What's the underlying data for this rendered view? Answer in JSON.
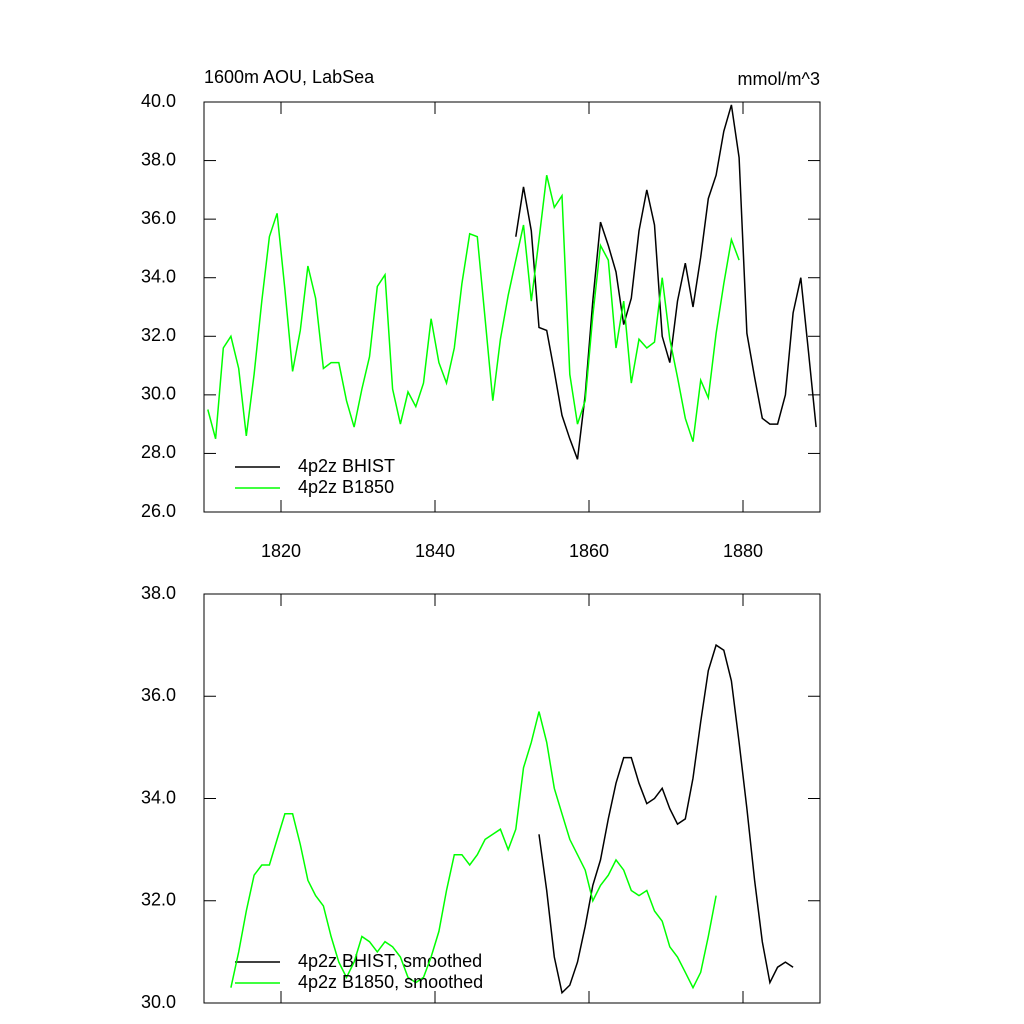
{
  "chart_data": [
    {
      "type": "line",
      "title": "1600m AOU, LabSea",
      "subtitle": "mmol/m^3",
      "x": [
        1810.5,
        1811.5,
        1812.5,
        1813.5,
        1814.5,
        1815.5,
        1816.5,
        1817.5,
        1818.5,
        1819.5,
        1820.5,
        1821.5,
        1822.5,
        1823.5,
        1824.5,
        1825.5,
        1826.5,
        1827.5,
        1828.5,
        1829.5,
        1830.5,
        1831.5,
        1832.5,
        1833.5,
        1834.5,
        1835.5,
        1836.5,
        1837.5,
        1838.5,
        1839.5,
        1840.5,
        1841.5,
        1842.5,
        1843.5,
        1844.5,
        1845.5,
        1846.5,
        1847.5,
        1848.5,
        1849.5,
        1850.5,
        1851.5,
        1852.5,
        1853.5,
        1854.5,
        1855.5,
        1856.5,
        1857.5,
        1858.5,
        1859.5,
        1860.5,
        1861.5,
        1862.5,
        1863.5,
        1864.5,
        1865.5,
        1866.5,
        1867.5,
        1868.5,
        1869.5,
        1870.5,
        1871.5,
        1872.5,
        1873.5,
        1874.5,
        1875.5,
        1876.5,
        1877.5,
        1878.5,
        1879.5,
        1880.5,
        1881.5,
        1882.5,
        1883.5,
        1884.5,
        1885.5,
        1886.5,
        1887.5,
        1888.5,
        1889.5
      ],
      "series": [
        {
          "name": "4p2z BHIST",
          "color": "#000000",
          "values": [
            null,
            null,
            null,
            null,
            null,
            null,
            null,
            null,
            null,
            null,
            null,
            null,
            null,
            null,
            null,
            null,
            null,
            null,
            null,
            null,
            null,
            null,
            null,
            null,
            null,
            null,
            null,
            null,
            null,
            null,
            null,
            null,
            null,
            null,
            null,
            null,
            null,
            null,
            null,
            null,
            35.4,
            37.1,
            35.6,
            32.3,
            32.2,
            30.8,
            29.3,
            28.5,
            27.8,
            30.0,
            33.2,
            35.9,
            35.1,
            34.2,
            32.4,
            33.3,
            35.6,
            37.0,
            35.8,
            32.0,
            31.1,
            33.2,
            34.5,
            33.0,
            34.7,
            36.7,
            37.5,
            39.0,
            39.9,
            38.1,
            32.1,
            30.6,
            29.2,
            29.0,
            29.0,
            30.0,
            32.8,
            34.0,
            31.5,
            28.9
          ]
        },
        {
          "name": "4p2z B1850",
          "color": "#00ff00",
          "values": [
            29.5,
            28.5,
            31.6,
            32.0,
            30.9,
            28.6,
            30.7,
            33.2,
            35.4,
            36.2,
            33.6,
            30.8,
            32.2,
            34.4,
            33.3,
            30.9,
            31.1,
            31.1,
            29.8,
            28.9,
            30.2,
            31.3,
            33.7,
            34.1,
            30.2,
            29.0,
            30.1,
            29.6,
            30.4,
            32.6,
            31.1,
            30.4,
            31.6,
            33.8,
            35.5,
            35.4,
            32.6,
            29.8,
            31.9,
            33.4,
            34.6,
            35.8,
            33.2,
            35.3,
            37.5,
            36.4,
            36.8,
            30.7,
            29.0,
            29.8,
            32.7,
            35.1,
            34.6,
            31.6,
            33.2,
            30.4,
            31.9,
            31.6,
            31.8,
            34.0,
            31.9,
            30.6,
            29.2,
            28.4,
            30.5,
            29.9,
            32.1,
            33.8,
            35.3,
            34.6,
            null,
            null,
            null,
            null,
            null,
            null,
            null,
            null,
            null,
            null
          ]
        }
      ],
      "xlim": [
        1810,
        1890
      ],
      "xticks": [
        1820,
        1840,
        1860,
        1880
      ],
      "ylim": [
        26,
        40
      ],
      "yticks": [
        {
          "value": 26,
          "label": "26.0"
        },
        {
          "value": 28,
          "label": "28.0"
        },
        {
          "value": 30,
          "label": "30.0"
        },
        {
          "value": 32,
          "label": "32.0"
        },
        {
          "value": 34,
          "label": "34.0"
        },
        {
          "value": 36,
          "label": "36.0"
        },
        {
          "value": 38,
          "label": "38.0"
        },
        {
          "value": 40,
          "label": "40.0"
        }
      ],
      "legend": "lower left"
    },
    {
      "type": "line",
      "x": [
        1810.5,
        1811.5,
        1812.5,
        1813.5,
        1814.5,
        1815.5,
        1816.5,
        1817.5,
        1818.5,
        1819.5,
        1820.5,
        1821.5,
        1822.5,
        1823.5,
        1824.5,
        1825.5,
        1826.5,
        1827.5,
        1828.5,
        1829.5,
        1830.5,
        1831.5,
        1832.5,
        1833.5,
        1834.5,
        1835.5,
        1836.5,
        1837.5,
        1838.5,
        1839.5,
        1840.5,
        1841.5,
        1842.5,
        1843.5,
        1844.5,
        1845.5,
        1846.5,
        1847.5,
        1848.5,
        1849.5,
        1850.5,
        1851.5,
        1852.5,
        1853.5,
        1854.5,
        1855.5,
        1856.5,
        1857.5,
        1858.5,
        1859.5,
        1860.5,
        1861.5,
        1862.5,
        1863.5,
        1864.5,
        1865.5,
        1866.5,
        1867.5,
        1868.5,
        1869.5,
        1870.5,
        1871.5,
        1872.5,
        1873.5,
        1874.5,
        1875.5,
        1876.5,
        1877.5,
        1878.5,
        1879.5,
        1880.5,
        1881.5,
        1882.5,
        1883.5,
        1884.5,
        1885.5,
        1886.5,
        1887.5,
        1888.5,
        1889.5
      ],
      "series": [
        {
          "name": "4p2z BHIST, smoothed",
          "color": "#000000",
          "values": [
            null,
            null,
            null,
            null,
            null,
            null,
            null,
            null,
            null,
            null,
            null,
            null,
            null,
            null,
            null,
            null,
            null,
            null,
            null,
            null,
            null,
            null,
            null,
            null,
            null,
            null,
            null,
            null,
            null,
            null,
            null,
            null,
            null,
            null,
            null,
            null,
            null,
            null,
            null,
            null,
            null,
            null,
            null,
            33.3,
            32.2,
            30.9,
            30.2,
            30.35,
            30.8,
            31.5,
            32.3,
            32.8,
            33.6,
            34.3,
            34.8,
            34.8,
            34.3,
            33.9,
            34.0,
            34.2,
            33.8,
            33.5,
            33.6,
            34.4,
            35.5,
            36.5,
            37.0,
            36.9,
            36.3,
            35.1,
            33.8,
            32.4,
            31.2,
            30.4,
            30.7,
            30.8,
            30.7,
            null,
            null,
            null
          ]
        },
        {
          "name": "4p2z B1850, smoothed",
          "color": "#00ff00",
          "values": [
            null,
            null,
            null,
            30.3,
            31.0,
            31.8,
            32.5,
            32.7,
            32.7,
            33.2,
            33.7,
            33.7,
            33.1,
            32.4,
            32.1,
            31.9,
            31.3,
            30.8,
            30.5,
            30.8,
            31.3,
            31.2,
            31.0,
            31.2,
            31.1,
            30.9,
            30.5,
            30.4,
            30.5,
            30.9,
            31.4,
            32.2,
            32.9,
            32.9,
            32.7,
            32.9,
            33.2,
            33.3,
            33.4,
            33.0,
            33.4,
            34.6,
            35.1,
            35.7,
            35.1,
            34.2,
            33.7,
            33.2,
            32.9,
            32.6,
            32.0,
            32.3,
            32.5,
            32.8,
            32.6,
            32.2,
            32.1,
            32.2,
            31.8,
            31.6,
            31.1,
            30.9,
            30.6,
            30.3,
            30.6,
            31.3,
            32.1,
            null,
            null,
            null,
            null,
            null,
            null,
            null,
            null,
            null,
            null,
            null,
            null,
            null
          ]
        }
      ],
      "xlim": [
        1810,
        1890
      ],
      "xticks": [
        1820,
        1840,
        1860,
        1880
      ],
      "ylim": [
        30,
        38
      ],
      "yticks": [
        {
          "value": 30,
          "label": "30.0"
        },
        {
          "value": 32,
          "label": "32.0"
        },
        {
          "value": 34,
          "label": "34.0"
        },
        {
          "value": 36,
          "label": "36.0"
        },
        {
          "value": 38,
          "label": "38.0"
        }
      ],
      "legend": "lower left"
    }
  ]
}
